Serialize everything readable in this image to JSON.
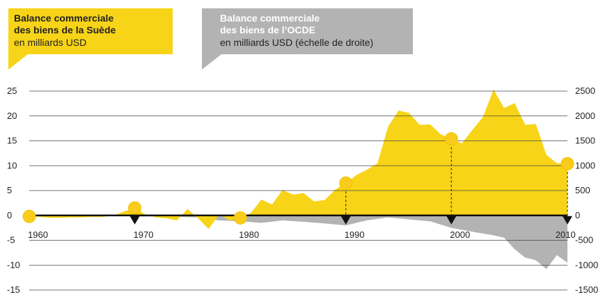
{
  "colors": {
    "sweden": "#f7d417",
    "oecd": "#b3b3b3",
    "marker": "#f9cc1c",
    "grid": "#444444",
    "text": "#222222"
  },
  "legend": {
    "sweden": {
      "title_line1": "Balance commerciale",
      "title_line2": "des biens de la Suède",
      "subtitle": "en milliards USD"
    },
    "oecd": {
      "title_line1": "Balance commerciale",
      "title_line2": "des biens de l’OCDE",
      "subtitle": "en milliards USD (échelle de droite)"
    }
  },
  "chart_data": {
    "type": "area",
    "grid": true,
    "x_ticks": [
      1960,
      1970,
      1980,
      1990,
      2000,
      2010
    ],
    "left_axis": {
      "ticks": [
        25,
        20,
        15,
        10,
        5,
        0,
        -5,
        -10,
        -15
      ],
      "range": [
        -15,
        25
      ]
    },
    "right_axis": {
      "ticks": [
        2500,
        2000,
        1500,
        1000,
        500,
        0,
        -500,
        -1000,
        -1500
      ],
      "range": [
        -1500,
        2500
      ]
    },
    "series": [
      {
        "key": "sweden",
        "axis": "left",
        "x": [
          1960,
          1961,
          1962,
          1963,
          1964,
          1965,
          1966,
          1967,
          1968,
          1969,
          1970,
          1971,
          1972,
          1973,
          1974,
          1975,
          1976,
          1977,
          1978,
          1979,
          1980,
          1981,
          1982,
          1983,
          1984,
          1985,
          1986,
          1987,
          1988,
          1989,
          1990,
          1991,
          1992,
          1993,
          1994,
          1995,
          1996,
          1997,
          1998,
          1999,
          2000,
          2001,
          2002,
          2003,
          2004,
          2005,
          2006,
          2007,
          2008,
          2009,
          2010,
          2011
        ],
        "values": [
          -0.2,
          -0.3,
          -0.5,
          -0.5,
          -0.4,
          -0.4,
          -0.3,
          -0.3,
          0,
          0.8,
          1.5,
          0.2,
          -0.4,
          -0.6,
          -1,
          1.3,
          -0.6,
          -2.7,
          0.2,
          -1,
          -0.5,
          0.5,
          3.2,
          2.2,
          5.1,
          4.2,
          4.5,
          2.8,
          3.1,
          5.2,
          6.5,
          8.1,
          9.2,
          10.5,
          17.8,
          21.1,
          20.6,
          18.2,
          18.3,
          16.3,
          15.4,
          14.5,
          17.2,
          19.8,
          25.3,
          21.6,
          22.6,
          18.2,
          18.4,
          12.2,
          10.5,
          10.4
        ]
      },
      {
        "key": "oecd",
        "axis": "right",
        "x": [
          1960,
          1962,
          1964,
          1966,
          1968,
          1970,
          1972,
          1974,
          1976,
          1978,
          1980,
          1982,
          1984,
          1986,
          1988,
          1990,
          1992,
          1994,
          1996,
          1998,
          2000,
          2002,
          2004,
          2005,
          2006,
          2007,
          2008,
          2009,
          2010,
          2011
        ],
        "values": [
          0,
          -5,
          -5,
          -5,
          -5,
          -20,
          -20,
          -30,
          -40,
          -100,
          -120,
          -150,
          -100,
          -130,
          -160,
          -200,
          -100,
          -40,
          -80,
          -120,
          -250,
          -330,
          -400,
          -450,
          -680,
          -850,
          -900,
          -1080,
          -800,
          -950
        ]
      }
    ],
    "highlight_years": [
      1960,
      1970,
      1980,
      1990,
      2000,
      2011
    ],
    "dashed_years": [
      1990,
      2000,
      2011
    ]
  }
}
